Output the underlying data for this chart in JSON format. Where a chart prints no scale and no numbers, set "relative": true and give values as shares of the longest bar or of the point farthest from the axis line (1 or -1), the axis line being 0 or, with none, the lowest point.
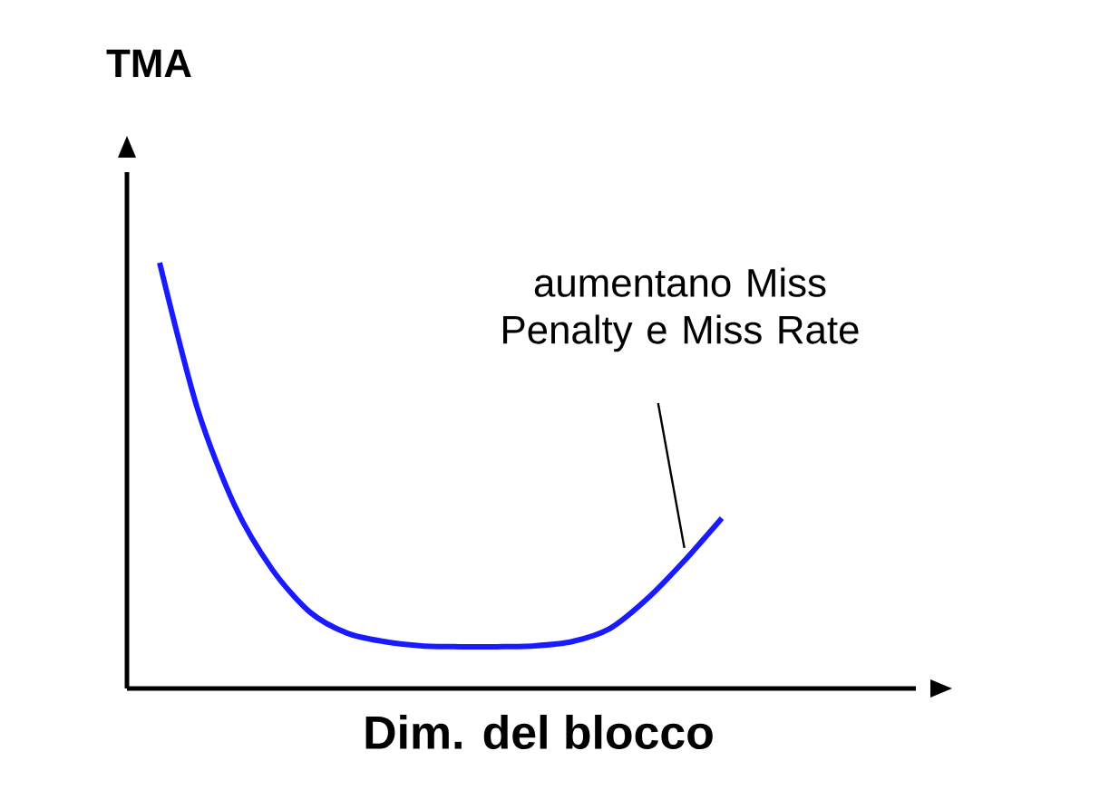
{
  "chart_data": {
    "type": "line",
    "title": "TMA",
    "xlabel": "Dim. del blocco",
    "relative": true,
    "tick_labels": false,
    "categories": [
      null,
      null,
      null,
      null,
      null,
      null,
      null,
      null,
      null,
      null,
      null,
      null,
      null,
      null,
      null,
      null
    ],
    "series": [
      {
        "color": "#1a1aff",
        "values": [
          1,
          0.66,
          0.43,
          0.28,
          0.18,
          0.13,
          0.11,
          0.1,
          0.098,
          0.098,
          0.1,
          0.11,
          0.14,
          0.21,
          0.3,
          0.4
        ]
      }
    ],
    "annotations": [
      "aumentano Miss Penalty e Miss Rate"
    ],
    "marker": "none",
    "line_style": "solid"
  }
}
